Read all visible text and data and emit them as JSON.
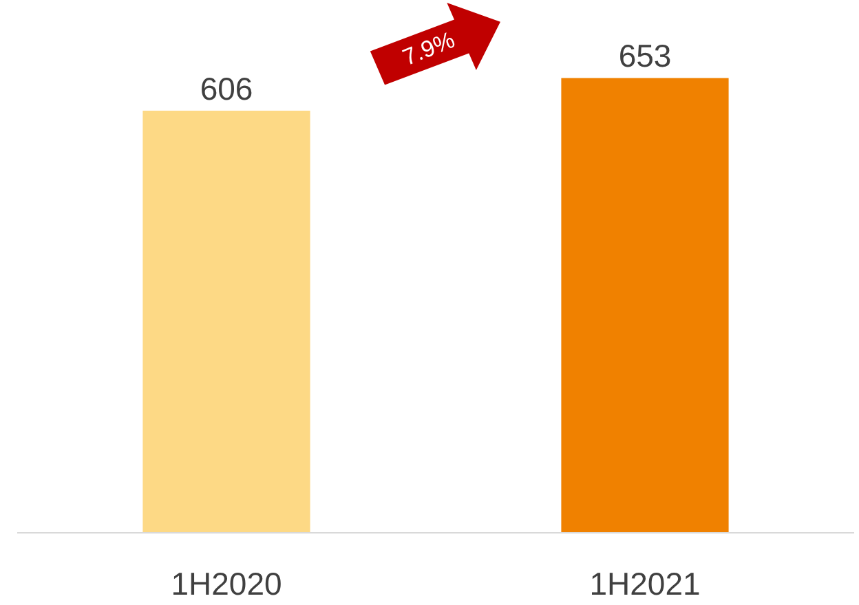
{
  "chart_data": {
    "type": "bar",
    "categories": [
      "1H2020",
      "1H2021"
    ],
    "values": [
      606,
      653
    ],
    "colors": [
      "#fdd985",
      "#f08100"
    ],
    "data_labels": true,
    "grid": false,
    "annotations": [
      "7.9%"
    ]
  }
}
